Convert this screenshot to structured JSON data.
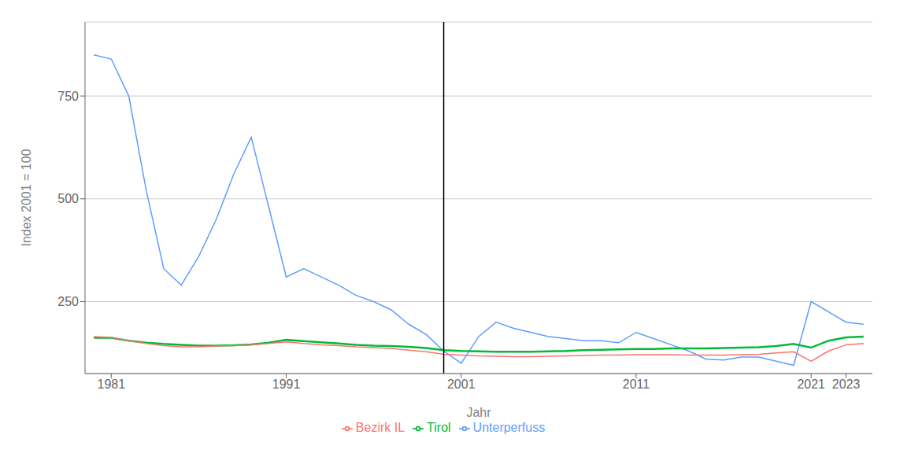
{
  "chart_data": {
    "type": "line",
    "x_label": "Jahr",
    "y_label": "Index 2001 = 100",
    "x": [
      1980,
      1981,
      1982,
      1983,
      1984,
      1985,
      1986,
      1987,
      1988,
      1989,
      1990,
      1991,
      1992,
      1993,
      1994,
      1995,
      1996,
      1997,
      1998,
      1999,
      2000,
      2001,
      2002,
      2003,
      2004,
      2005,
      2006,
      2007,
      2008,
      2009,
      2010,
      2011,
      2012,
      2013,
      2014,
      2015,
      2016,
      2017,
      2018,
      2019,
      2020,
      2021,
      2022,
      2023,
      2024
    ],
    "series": [
      {
        "name": "Bezirk IL",
        "color": "#F8766D",
        "values": [
          165,
          163,
          155,
          148,
          143,
          140,
          140,
          142,
          143,
          145,
          148,
          152,
          148,
          145,
          143,
          140,
          138,
          136,
          132,
          128,
          122,
          120,
          118,
          117,
          116,
          116,
          117,
          118,
          119,
          120,
          120,
          121,
          121,
          121,
          120,
          120,
          120,
          121,
          122,
          125,
          128,
          105,
          130,
          145,
          148
        ]
      },
      {
        "name": "Tirol",
        "color": "#00BA38",
        "values": [
          162,
          162,
          155,
          150,
          147,
          145,
          143,
          143,
          144,
          146,
          150,
          157,
          154,
          151,
          148,
          145,
          143,
          142,
          140,
          137,
          132,
          130,
          129,
          128,
          128,
          128,
          129,
          130,
          132,
          133,
          134,
          135,
          135,
          136,
          136,
          136,
          137,
          138,
          139,
          142,
          147,
          138,
          155,
          163,
          165
        ]
      },
      {
        "name": "Unterperfuss",
        "color": "#619CFF",
        "values": [
          850,
          840,
          750,
          520,
          330,
          290,
          360,
          450,
          560,
          650,
          480,
          310,
          330,
          310,
          290,
          265,
          250,
          230,
          195,
          170,
          130,
          100,
          165,
          200,
          185,
          175,
          165,
          160,
          155,
          155,
          150,
          175,
          160,
          145,
          130,
          110,
          108,
          115,
          115,
          105,
          95,
          250,
          225,
          200,
          195
        ]
      }
    ],
    "vline": 2000,
    "xlim": [
      1979.5,
      2024.5
    ],
    "xticks": [
      1981,
      1991,
      2001,
      2011,
      2021,
      2023
    ],
    "ylim": [
      75,
      930
    ],
    "yticks": [
      250,
      500,
      750
    ],
    "grid": true,
    "legend": "bottom"
  }
}
